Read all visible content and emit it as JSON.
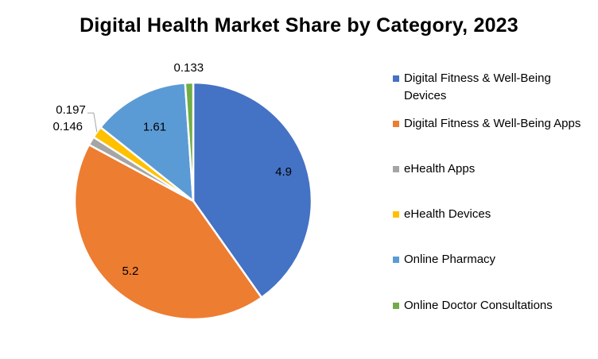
{
  "chart_data": {
    "type": "pie",
    "title": "Digital Health Market Share by Category, 2023",
    "categories": [
      "Digital Fitness & Well-Being Devices",
      "Digital Fitness & Well-Being Apps",
      "eHealth Apps",
      "eHealth Devices",
      "Online Pharmacy",
      "Online Doctor Consultations"
    ],
    "values": [
      4.9,
      5.2,
      0.146,
      0.197,
      1.61,
      0.133
    ],
    "data_labels": [
      "4.9",
      "5.2",
      "0.146",
      "0.197",
      "1.61",
      "0.133"
    ],
    "colors": [
      "#4472C4",
      "#ED7D31",
      "#A5A5A5",
      "#FFC000",
      "#5B9BD5",
      "#70AD47"
    ],
    "legend_position": "right"
  }
}
